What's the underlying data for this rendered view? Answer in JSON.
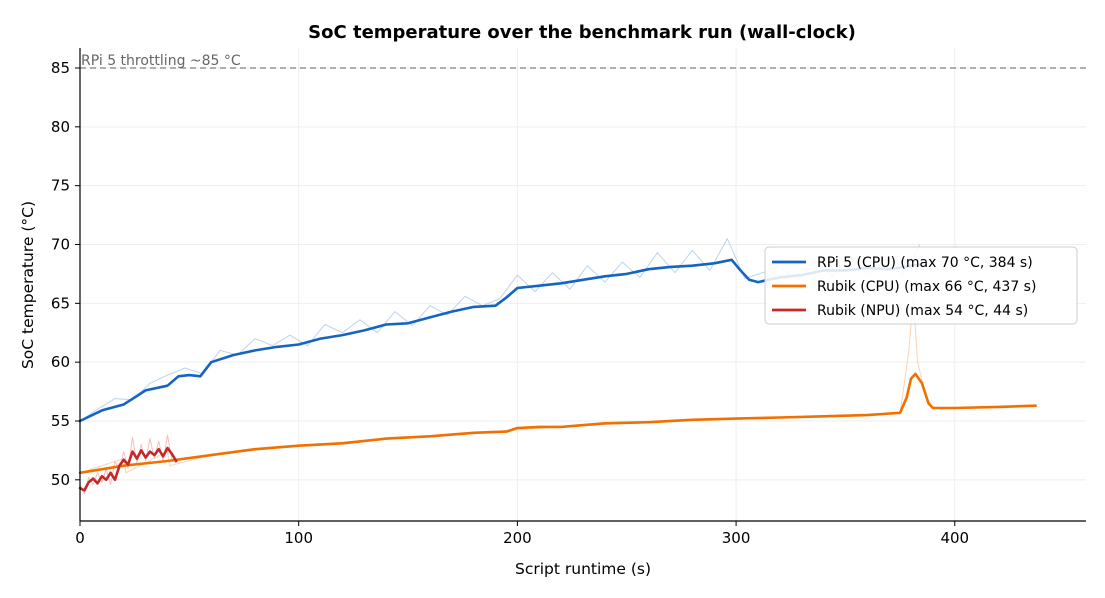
{
  "chart_data": {
    "type": "line",
    "title": "SoC temperature over the benchmark run (wall-clock)",
    "xlabel": "Script runtime (s)",
    "ylabel": "SoC temperature (°C)",
    "xlim": [
      0,
      460
    ],
    "ylim": [
      46.5,
      86.7
    ],
    "xticks": [
      0,
      100,
      200,
      300,
      400
    ],
    "yticks": [
      50,
      55,
      60,
      65,
      70,
      75,
      80,
      85
    ],
    "grid": true,
    "legend_position": "center-right",
    "reference_line": {
      "y": 85,
      "label": "RPi 5 throttling ~85 °C",
      "color": "#808080"
    },
    "series": [
      {
        "name": "RPi 5 (CPU) (max 70 °C, 384 s)",
        "color": "#1565c0",
        "raw_color": "#bcd3ee",
        "points": [
          [
            0,
            55.0
          ],
          [
            10,
            55.9
          ],
          [
            20,
            56.4
          ],
          [
            30,
            57.6
          ],
          [
            40,
            58.0
          ],
          [
            45,
            58.8
          ],
          [
            50,
            58.9
          ],
          [
            55,
            58.8
          ],
          [
            60,
            60.0
          ],
          [
            70,
            60.6
          ],
          [
            80,
            61.0
          ],
          [
            90,
            61.3
          ],
          [
            100,
            61.5
          ],
          [
            110,
            62.0
          ],
          [
            120,
            62.3
          ],
          [
            130,
            62.7
          ],
          [
            140,
            63.2
          ],
          [
            150,
            63.3
          ],
          [
            160,
            63.8
          ],
          [
            170,
            64.3
          ],
          [
            180,
            64.7
          ],
          [
            190,
            64.8
          ],
          [
            195,
            65.5
          ],
          [
            200,
            66.3
          ],
          [
            210,
            66.5
          ],
          [
            220,
            66.7
          ],
          [
            230,
            67.0
          ],
          [
            240,
            67.3
          ],
          [
            250,
            67.5
          ],
          [
            260,
            67.9
          ],
          [
            270,
            68.1
          ],
          [
            280,
            68.2
          ],
          [
            290,
            68.4
          ],
          [
            298,
            68.7
          ],
          [
            302,
            67.8
          ],
          [
            306,
            67.0
          ],
          [
            310,
            66.8
          ],
          [
            320,
            67.2
          ],
          [
            330,
            67.4
          ],
          [
            340,
            67.8
          ],
          [
            350,
            67.8
          ],
          [
            360,
            68.0
          ],
          [
            370,
            67.9
          ],
          [
            384,
            68.3
          ]
        ],
        "raw_points": [
          [
            0,
            55.0
          ],
          [
            8,
            56.0
          ],
          [
            16,
            56.9
          ],
          [
            24,
            56.8
          ],
          [
            32,
            58.2
          ],
          [
            40,
            58.9
          ],
          [
            48,
            59.5
          ],
          [
            56,
            59.0
          ],
          [
            64,
            61.0
          ],
          [
            72,
            60.6
          ],
          [
            80,
            62.0
          ],
          [
            88,
            61.4
          ],
          [
            96,
            62.3
          ],
          [
            104,
            61.4
          ],
          [
            112,
            63.2
          ],
          [
            120,
            62.5
          ],
          [
            128,
            63.6
          ],
          [
            136,
            62.5
          ],
          [
            144,
            64.3
          ],
          [
            152,
            63.1
          ],
          [
            160,
            64.8
          ],
          [
            168,
            64.0
          ],
          [
            176,
            65.6
          ],
          [
            184,
            64.8
          ],
          [
            192,
            65.4
          ],
          [
            200,
            67.4
          ],
          [
            208,
            66.0
          ],
          [
            216,
            67.6
          ],
          [
            224,
            66.2
          ],
          [
            232,
            68.2
          ],
          [
            240,
            66.8
          ],
          [
            248,
            68.5
          ],
          [
            256,
            67.2
          ],
          [
            264,
            69.3
          ],
          [
            272,
            67.6
          ],
          [
            280,
            69.5
          ],
          [
            288,
            67.8
          ],
          [
            296,
            70.5
          ],
          [
            304,
            67.1
          ],
          [
            312,
            67.6
          ],
          [
            320,
            68.1
          ],
          [
            328,
            67.0
          ],
          [
            336,
            68.6
          ],
          [
            344,
            67.3
          ],
          [
            352,
            68.9
          ],
          [
            360,
            67.4
          ],
          [
            368,
            68.8
          ],
          [
            376,
            67.4
          ],
          [
            384,
            70.0
          ]
        ]
      },
      {
        "name": "Rubik (CPU) (max 66 °C, 437 s)",
        "color": "#f07000",
        "raw_color": "#fbd2b4",
        "points": [
          [
            0,
            50.6
          ],
          [
            20,
            51.2
          ],
          [
            40,
            51.6
          ],
          [
            60,
            52.1
          ],
          [
            80,
            52.6
          ],
          [
            100,
            52.9
          ],
          [
            120,
            53.1
          ],
          [
            140,
            53.5
          ],
          [
            160,
            53.7
          ],
          [
            180,
            54.0
          ],
          [
            195,
            54.1
          ],
          [
            200,
            54.4
          ],
          [
            210,
            54.5
          ],
          [
            220,
            54.5
          ],
          [
            240,
            54.8
          ],
          [
            260,
            54.9
          ],
          [
            280,
            55.1
          ],
          [
            300,
            55.2
          ],
          [
            320,
            55.3
          ],
          [
            340,
            55.4
          ],
          [
            360,
            55.5
          ],
          [
            375,
            55.7
          ],
          [
            378,
            57.0
          ],
          [
            380,
            58.6
          ],
          [
            382,
            59.0
          ],
          [
            385,
            58.2
          ],
          [
            388,
            56.5
          ],
          [
            390,
            56.1
          ],
          [
            400,
            56.1
          ],
          [
            420,
            56.2
          ],
          [
            437,
            56.3
          ]
        ],
        "raw_points": [
          [
            0,
            50.6
          ],
          [
            20,
            51.8
          ],
          [
            21,
            50.6
          ],
          [
            40,
            52.4
          ],
          [
            41,
            51.2
          ],
          [
            60,
            52.1
          ],
          [
            100,
            52.9
          ],
          [
            140,
            53.5
          ],
          [
            180,
            54.0
          ],
          [
            220,
            54.5
          ],
          [
            260,
            54.9
          ],
          [
            300,
            55.2
          ],
          [
            340,
            55.4
          ],
          [
            375,
            55.7
          ],
          [
            379,
            61.0
          ],
          [
            381,
            65.6
          ],
          [
            383,
            60.0
          ],
          [
            387,
            57.0
          ],
          [
            390,
            56.1
          ],
          [
            437,
            56.3
          ]
        ]
      },
      {
        "name": "Rubik (NPU) (max 54 °C, 44 s)",
        "color": "#c62828",
        "raw_color": "#f2c0c0",
        "points": [
          [
            0,
            49.3
          ],
          [
            2,
            49.1
          ],
          [
            4,
            49.8
          ],
          [
            6,
            50.1
          ],
          [
            8,
            49.7
          ],
          [
            10,
            50.3
          ],
          [
            12,
            50.0
          ],
          [
            14,
            50.6
          ],
          [
            16,
            50.0
          ],
          [
            18,
            51.2
          ],
          [
            20,
            51.7
          ],
          [
            22,
            51.3
          ],
          [
            24,
            52.4
          ],
          [
            26,
            51.8
          ],
          [
            28,
            52.5
          ],
          [
            30,
            51.9
          ],
          [
            32,
            52.4
          ],
          [
            34,
            52.1
          ],
          [
            36,
            52.6
          ],
          [
            38,
            52.0
          ],
          [
            40,
            52.7
          ],
          [
            42,
            52.2
          ],
          [
            44,
            51.6
          ]
        ],
        "raw_points": [
          [
            0,
            49.6
          ],
          [
            2,
            48.8
          ],
          [
            4,
            50.2
          ],
          [
            6,
            49.6
          ],
          [
            8,
            50.6
          ],
          [
            10,
            49.8
          ],
          [
            12,
            50.9
          ],
          [
            14,
            49.6
          ],
          [
            16,
            51.6
          ],
          [
            18,
            50.8
          ],
          [
            20,
            52.4
          ],
          [
            22,
            51.0
          ],
          [
            24,
            53.6
          ],
          [
            26,
            51.4
          ],
          [
            28,
            53.0
          ],
          [
            30,
            51.6
          ],
          [
            32,
            53.5
          ],
          [
            34,
            51.8
          ],
          [
            36,
            53.3
          ],
          [
            38,
            51.6
          ],
          [
            40,
            53.8
          ],
          [
            42,
            51.7
          ],
          [
            44,
            51.4
          ]
        ]
      }
    ]
  }
}
